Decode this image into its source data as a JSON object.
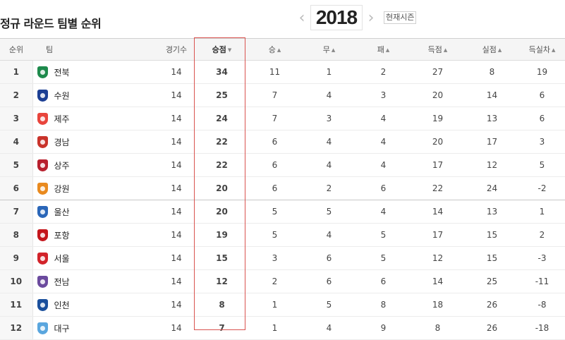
{
  "title": "정규 라운드 팀별 순위",
  "season": {
    "year": "2018",
    "prev_icon": "chevron-left-icon",
    "next_icon": "chevron-right-icon",
    "current_label": "현재시즌"
  },
  "columns": {
    "rank": "순위",
    "team": "팀",
    "games": "경기수",
    "points": "승점",
    "wins": "승",
    "draws": "무",
    "losses": "패",
    "goals_for": "득점",
    "goals_against": "실점",
    "goal_diff": "득실차"
  },
  "colors": {
    "highlight": "#d9534f"
  },
  "rows": [
    {
      "rank": "1",
      "team": "전북",
      "games": "14",
      "points": "34",
      "wins": "11",
      "draws": "1",
      "losses": "2",
      "gf": "27",
      "ga": "8",
      "gd": "19",
      "color": "#1e8a4c"
    },
    {
      "rank": "2",
      "team": "수원",
      "games": "14",
      "points": "25",
      "wins": "7",
      "draws": "4",
      "losses": "3",
      "gf": "20",
      "ga": "14",
      "gd": "6",
      "color": "#1c3f94"
    },
    {
      "rank": "3",
      "team": "제주",
      "games": "14",
      "points": "24",
      "wins": "7",
      "draws": "3",
      "losses": "4",
      "gf": "19",
      "ga": "13",
      "gd": "6",
      "color": "#e8453c"
    },
    {
      "rank": "4",
      "team": "경남",
      "games": "14",
      "points": "22",
      "wins": "6",
      "draws": "4",
      "losses": "4",
      "gf": "20",
      "ga": "17",
      "gd": "3",
      "color": "#c9332b"
    },
    {
      "rank": "5",
      "team": "상주",
      "games": "14",
      "points": "22",
      "wins": "6",
      "draws": "4",
      "losses": "4",
      "gf": "17",
      "ga": "12",
      "gd": "5",
      "color": "#b8202e"
    },
    {
      "rank": "6",
      "team": "강원",
      "games": "14",
      "points": "20",
      "wins": "6",
      "draws": "2",
      "losses": "6",
      "gf": "22",
      "ga": "24",
      "gd": "-2",
      "color": "#e98a1f"
    },
    {
      "rank": "7",
      "team": "울산",
      "games": "14",
      "points": "20",
      "wins": "5",
      "draws": "5",
      "losses": "4",
      "gf": "14",
      "ga": "13",
      "gd": "1",
      "color": "#2a66b8"
    },
    {
      "rank": "8",
      "team": "포항",
      "games": "14",
      "points": "19",
      "wins": "5",
      "draws": "4",
      "losses": "5",
      "gf": "17",
      "ga": "15",
      "gd": "2",
      "color": "#c4161c"
    },
    {
      "rank": "9",
      "team": "서울",
      "games": "14",
      "points": "15",
      "wins": "3",
      "draws": "6",
      "losses": "5",
      "gf": "12",
      "ga": "15",
      "gd": "-3",
      "color": "#d2232a"
    },
    {
      "rank": "10",
      "team": "전남",
      "games": "14",
      "points": "12",
      "wins": "2",
      "draws": "6",
      "losses": "6",
      "gf": "14",
      "ga": "25",
      "gd": "-11",
      "color": "#6b4a9e"
    },
    {
      "rank": "11",
      "team": "인천",
      "games": "14",
      "points": "8",
      "wins": "1",
      "draws": "5",
      "losses": "8",
      "gf": "18",
      "ga": "26",
      "gd": "-8",
      "color": "#1a4f9c"
    },
    {
      "rank": "12",
      "team": "대구",
      "games": "14",
      "points": "7",
      "wins": "1",
      "draws": "4",
      "losses": "9",
      "gf": "8",
      "ga": "26",
      "gd": "-18",
      "color": "#5aa6de"
    }
  ]
}
